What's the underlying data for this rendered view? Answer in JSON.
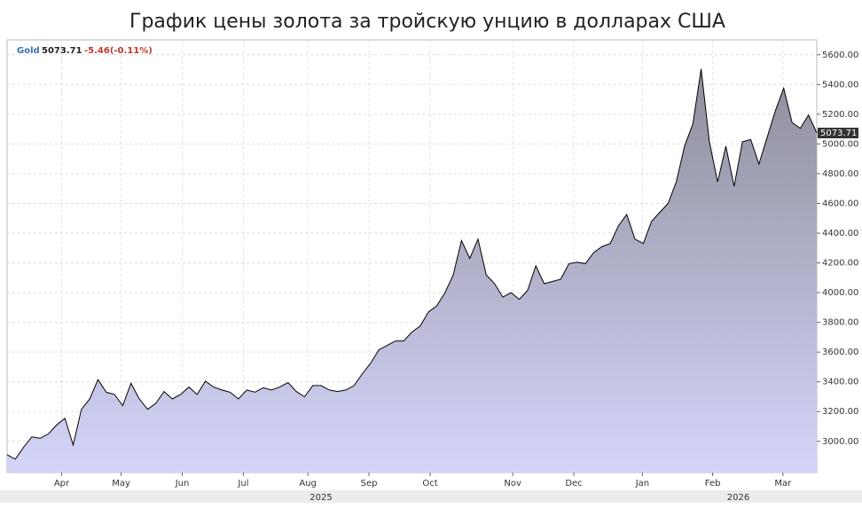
{
  "chart_data": {
    "type": "area",
    "title": "График цены золота за тройскую унцию в долларах США",
    "symbol": "Gold",
    "last": 5073.71,
    "change_label": "-5.46(-0.11%)",
    "series": [
      {
        "name": "Gold",
        "color": "#000000",
        "values": [
          2910,
          2880,
          2960,
          3030,
          3020,
          3050,
          3110,
          3155,
          2975,
          3215,
          3285,
          3415,
          3330,
          3315,
          3240,
          3390,
          3285,
          3215,
          3255,
          3335,
          3285,
          3315,
          3365,
          3315,
          3405,
          3365,
          3345,
          3330,
          3285,
          3345,
          3330,
          3360,
          3345,
          3365,
          3395,
          3335,
          3300,
          3375,
          3375,
          3345,
          3335,
          3345,
          3375,
          3455,
          3525,
          3615,
          3645,
          3675,
          3675,
          3735,
          3775,
          3870,
          3910,
          4000,
          4120,
          4350,
          4230,
          4360,
          4120,
          4060,
          3970,
          4000,
          3955,
          4015,
          4180,
          4060,
          4075,
          4090,
          4195,
          4205,
          4195,
          4270,
          4310,
          4330,
          4450,
          4525,
          4360,
          4330,
          4480,
          4540,
          4600,
          4745,
          4985,
          5135,
          5505,
          5015,
          4745,
          4985,
          4715,
          5015,
          5030,
          4865,
          5045,
          5225,
          5375,
          5145,
          5105,
          5195,
          5073.71
        ]
      }
    ],
    "xticks": [
      {
        "value": 6.6,
        "label": "Apr"
      },
      {
        "value": 13.8,
        "label": "May"
      },
      {
        "value": 21.2,
        "label": "Jun"
      },
      {
        "value": 28.6,
        "label": "Jul"
      },
      {
        "value": 36.4,
        "label": "Aug"
      },
      {
        "value": 43.8,
        "label": "Sep"
      },
      {
        "value": 51.2,
        "label": "Oct"
      },
      {
        "value": 61.2,
        "label": "Nov"
      },
      {
        "value": 68.6,
        "label": "Dec"
      },
      {
        "value": 76.9,
        "label": "Jan"
      },
      {
        "value": 85.4,
        "label": "Feb"
      },
      {
        "value": 93.9,
        "label": "Mar"
      }
    ],
    "year_labels": [
      {
        "value": 38,
        "label": "2025"
      },
      {
        "value": 88.5,
        "label": "2026"
      }
    ],
    "xlim": [
      0,
      98
    ],
    "ylim": [
      2790,
      5700
    ],
    "yticks": [
      {
        "value": 3000,
        "label": "3000.00"
      },
      {
        "value": 3200,
        "label": "3200.00"
      },
      {
        "value": 3400,
        "label": "3400.00"
      },
      {
        "value": 3600,
        "label": "3600.00"
      },
      {
        "value": 3800,
        "label": "3800.00"
      },
      {
        "value": 4000,
        "label": "4000.00"
      },
      {
        "value": 4200,
        "label": "4200.00"
      },
      {
        "value": 4400,
        "label": "4400.00"
      },
      {
        "value": 4600,
        "label": "4600.00"
      },
      {
        "value": 4800,
        "label": "4800.00"
      },
      {
        "value": 5000,
        "label": "5000.00"
      },
      {
        "value": 5200,
        "label": "5200.00"
      },
      {
        "value": 5400,
        "label": "5400.00"
      },
      {
        "value": 5600,
        "label": "5600.00"
      }
    ],
    "grid": true
  }
}
